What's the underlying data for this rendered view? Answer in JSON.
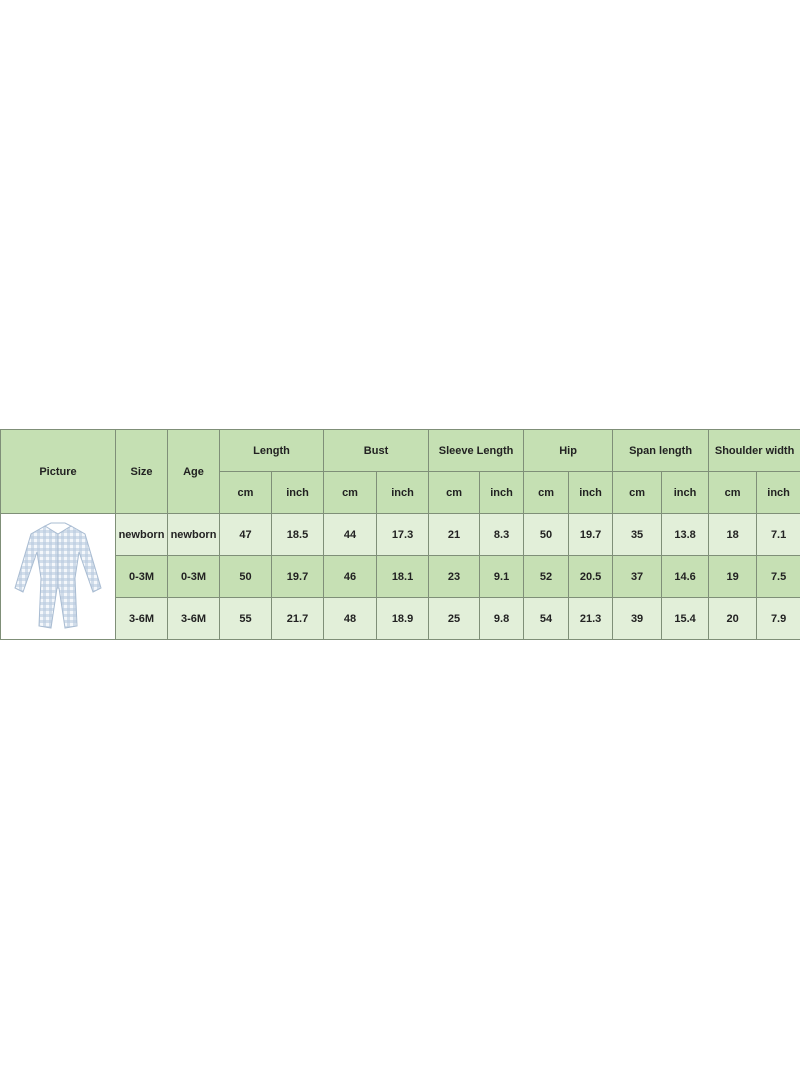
{
  "header": {
    "picture": "Picture",
    "size": "Size",
    "age": "Age",
    "groups": [
      "Length",
      "Bust",
      "Sleeve Length",
      "Hip",
      "Span length",
      "Shoulder width"
    ],
    "unit_cm": "cm",
    "unit_inch": "inch"
  },
  "picture_icon": "baby-romper-gingham-blue-image",
  "colors": {
    "header": "#c5e0b3",
    "row_light": "#e2efd9",
    "row_mid": "#c6e0b4"
  },
  "rows": [
    {
      "size": "newborn",
      "age": "newborn",
      "values": [
        "47",
        "18.5",
        "44",
        "17.3",
        "21",
        "8.3",
        "50",
        "19.7",
        "35",
        "13.8",
        "18",
        "7.1"
      ]
    },
    {
      "size": "0-3M",
      "age": "0-3M",
      "values": [
        "50",
        "19.7",
        "46",
        "18.1",
        "23",
        "9.1",
        "52",
        "20.5",
        "37",
        "14.6",
        "19",
        "7.5"
      ]
    },
    {
      "size": "3-6M",
      "age": "3-6M",
      "values": [
        "55",
        "21.7",
        "48",
        "18.9",
        "25",
        "9.8",
        "54",
        "21.3",
        "39",
        "15.4",
        "20",
        "7.9"
      ]
    }
  ]
}
